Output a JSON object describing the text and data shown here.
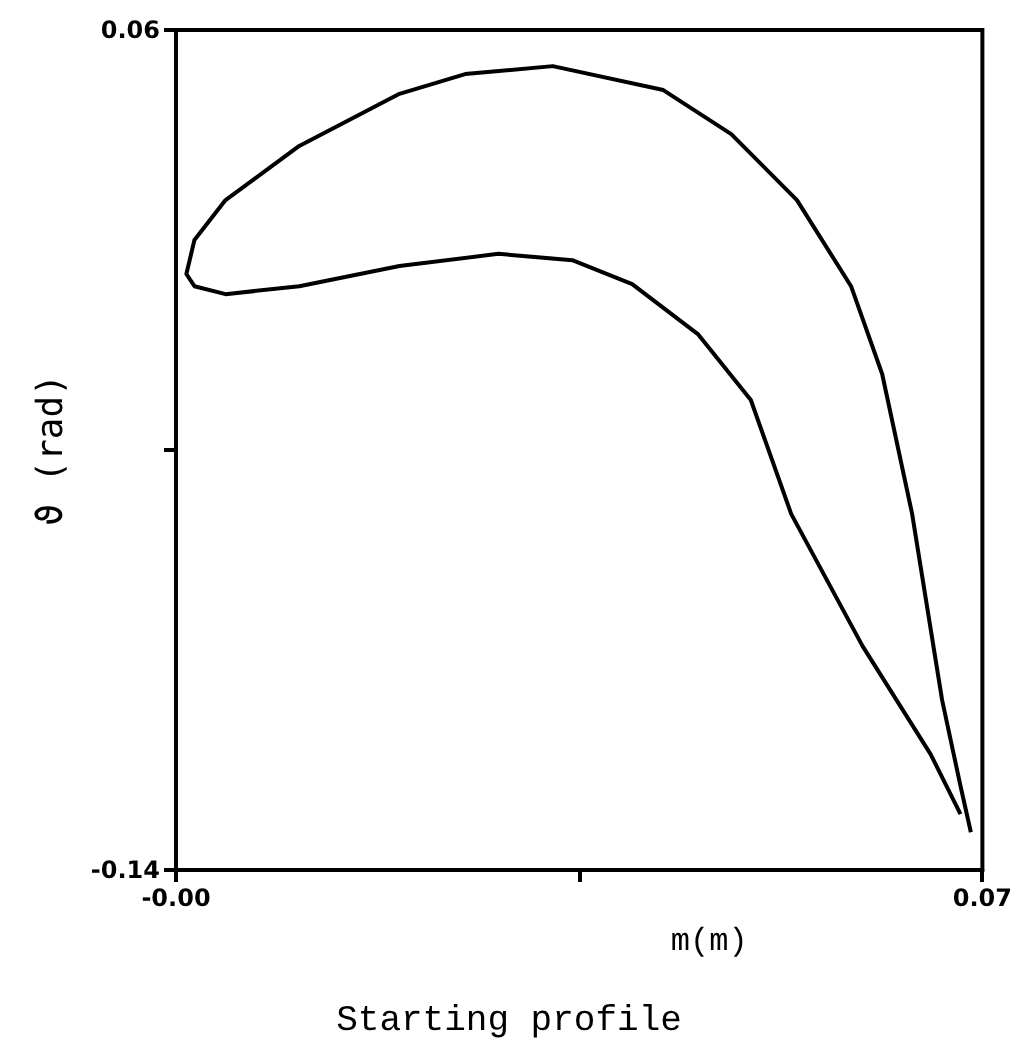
{
  "chart_data": {
    "type": "line",
    "title": "Starting profile",
    "xlabel": "m(m)",
    "ylabel": "ϑ (rad)",
    "xlim": [
      0,
      0.07
    ],
    "xticks": [
      {
        "value": 0,
        "label": "-0.00"
      },
      {
        "value": 0.035,
        "label": null
      },
      0.07
    ],
    "ylim": [
      -0.14,
      0.06
    ],
    "yticks": [
      -0.14,
      {
        "value": -0.04,
        "label": null
      },
      0.06
    ],
    "marker": "none",
    "line_style": "solid",
    "series": [
      {
        "color": "#000000",
        "x": [
          0.069,
          0.0681,
          0.0665,
          0.0639,
          0.0613,
          0.0586,
          0.0539,
          0.0482,
          0.0423,
          0.0327,
          0.0251,
          0.0194,
          0.0107,
          0.0043,
          0.0016,
          0.0009,
          0.0016,
          0.0043,
          0.0107,
          0.0194,
          0.028,
          0.0344,
          0.0396,
          0.0453,
          0.0499,
          0.0534,
          0.0596,
          0.0655,
          0.0681
        ],
        "values": [
          -0.131,
          -0.12,
          -0.0995,
          -0.0552,
          -0.0219,
          -0.001,
          0.0195,
          0.0352,
          0.0457,
          0.0514,
          0.0495,
          0.0448,
          0.0324,
          0.0195,
          0.01,
          0.0019,
          -0.001,
          -0.0029,
          -0.001,
          0.0038,
          0.0067,
          0.0052,
          -0.0005,
          -0.0124,
          -0.0281,
          -0.0552,
          -0.0867,
          -0.1124,
          -0.1267
        ]
      }
    ]
  }
}
